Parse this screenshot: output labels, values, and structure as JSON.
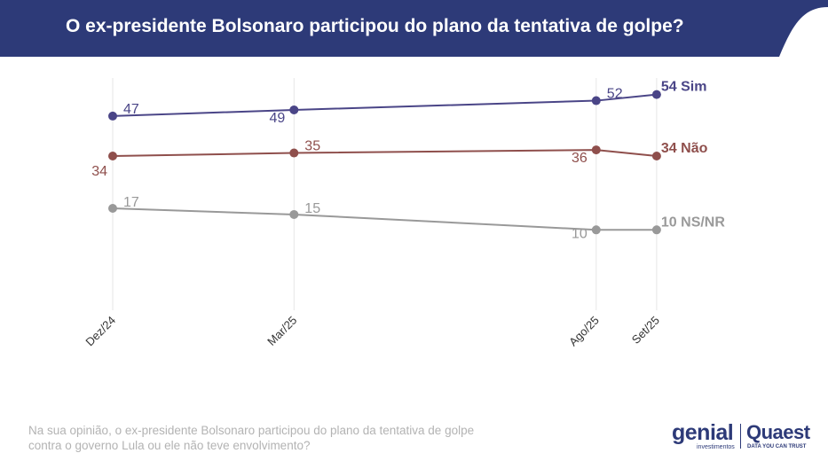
{
  "header": {
    "title": "O ex-presidente Bolsonaro participou do plano da tentativa de golpe?",
    "bg_color": "#2d3a78"
  },
  "chart_data": {
    "type": "line",
    "title": "O ex-presidente Bolsonaro participou do plano da tentativa de golpe?",
    "x": [
      "Dez/24",
      "Mar/25",
      "Ago/25",
      "Set/25"
    ],
    "x_months": [
      0,
      3,
      8,
      9
    ],
    "ylim": [
      0,
      60
    ],
    "grid": "vertical",
    "legend": "end-labels",
    "series": [
      {
        "name": "Sim",
        "values": [
          47,
          49,
          52,
          54
        ],
        "color": "#4a4587",
        "end_label": "54 Sim"
      },
      {
        "name": "Não",
        "values": [
          34,
          35,
          36,
          34
        ],
        "color": "#8f4f4c",
        "end_label": "34 Não"
      },
      {
        "name": "NS/NR",
        "values": [
          17,
          15,
          10,
          10
        ],
        "color": "#999999",
        "end_label": "10 NS/NR"
      }
    ]
  },
  "footnote": "Na sua opinião, o ex-presidente Bolsonaro participou do plano da tentativa de golpe contra o governo Lula ou ele não teve envolvimento?",
  "logos": {
    "genial": "genial",
    "genial_sub": "investimentos",
    "quaest": "Quaest",
    "quaest_sub": "DATA YOU CAN TRUST"
  }
}
